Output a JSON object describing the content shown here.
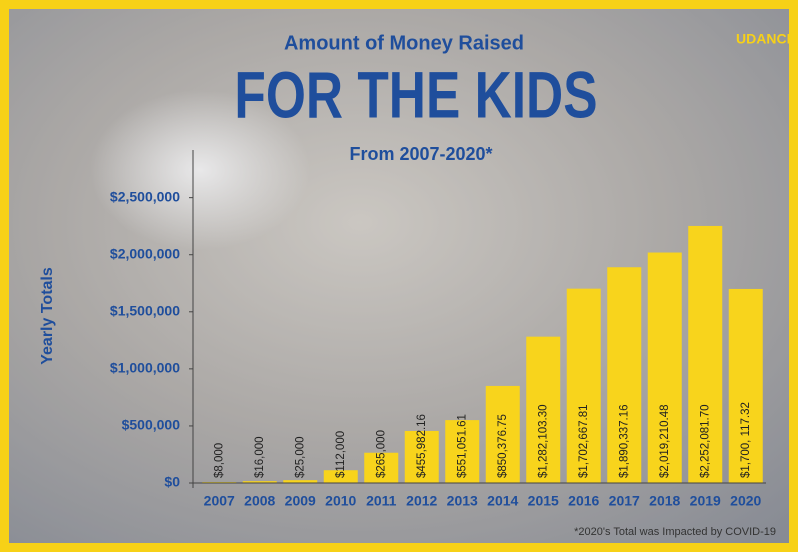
{
  "chart_data": {
    "type": "bar",
    "title": "Amount of Money Raised",
    "headline": "FOR THE KIDS",
    "subtitle": "From 2007-2020*",
    "logo": "UDANCE",
    "y_label": "Yearly Totals",
    "footnote": "*2020's Total was Impacted by COVID-19",
    "categories": [
      "2007",
      "2008",
      "2009",
      "2010",
      "2011",
      "2012",
      "2013",
      "2014",
      "2015",
      "2016",
      "2017",
      "2018",
      "2019",
      "2020"
    ],
    "values": [
      8000,
      16000,
      25000,
      112000,
      265000,
      455982.16,
      551051.61,
      850376.75,
      1282103.3,
      1702667.81,
      1890337.16,
      2019210.48,
      2252081.7,
      1700117.32
    ],
    "value_labels": [
      "$8,000",
      "$16,000",
      "$25,000",
      "$112,000",
      "$265,000",
      "$455,982.16",
      "$551,051.61",
      "$850,376.75",
      "$1,282,103.30",
      "$1,702,667.81",
      "$1,890,337.16",
      "$2,019,210.48",
      "$2,252,081.70",
      "$1,700, 117.32"
    ],
    "color": "#f8d41c",
    "ylim": [
      0,
      2900000
    ],
    "yticks": [
      {
        "value": 0,
        "label": "$0"
      },
      {
        "value": 500000,
        "label": "$500,000"
      },
      {
        "value": 1000000,
        "label": "$1,000,000"
      },
      {
        "value": 1500000,
        "label": "$1,500,000"
      },
      {
        "value": 2000000,
        "label": "$2,000,000"
      },
      {
        "value": 2500000,
        "label": "$2,500,000"
      }
    ],
    "grid": false
  }
}
